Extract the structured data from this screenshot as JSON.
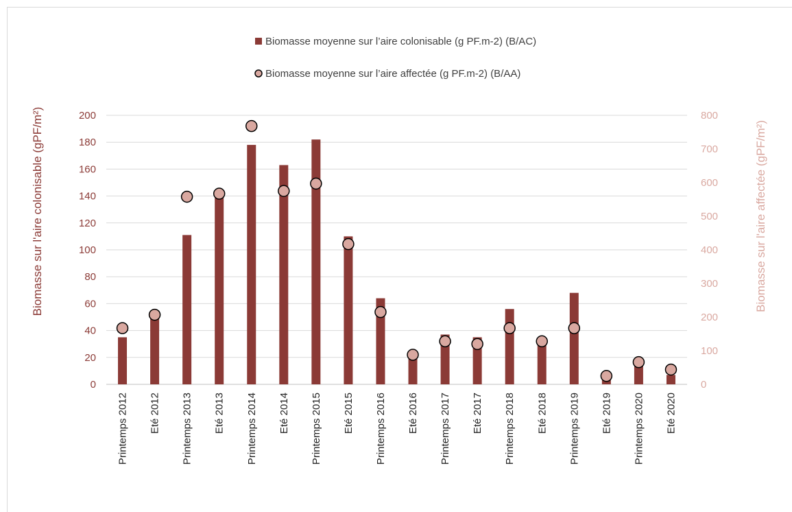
{
  "chart_data": {
    "type": "bar",
    "categories": [
      "Printemps 2012",
      "Eté 2012",
      "Printemps 2013",
      "Eté 2013",
      "Printemps 2014",
      "Eté 2014",
      "Printemps 2015",
      "Eté 2015",
      "Printemps 2016",
      "Eté 2016",
      "Printemps 2017",
      "Eté 2017",
      "Printemps 2018",
      "Eté 2018",
      "Printemps 2019",
      "Eté 2019",
      "Printemps 2020",
      "Eté 2020"
    ],
    "series": [
      {
        "name": "Biomasse moyenne sur l’aire colonisable (g PF.m-2) (B/AC)",
        "type": "bar",
        "axis": "left",
        "color": "#8b3a36",
        "values": [
          35,
          50,
          111,
          142,
          178,
          163,
          182,
          110,
          64,
          21,
          37,
          35,
          56,
          35,
          68,
          5,
          16,
          7
        ]
      },
      {
        "name": "Biomasse moyenne sur l’aire affectée (g PF.m-2) (B/AA)",
        "type": "scatter",
        "axis": "right",
        "color": "#d9a8a0",
        "values": [
          167,
          207,
          558,
          567,
          768,
          575,
          597,
          417,
          215,
          88,
          128,
          120,
          167,
          128,
          167,
          25,
          66,
          44
        ]
      }
    ],
    "ylabel": "Biomasse sur l'aire colonisable (gPF/m²)",
    "y2label": "Biomasse sur l'aire affectée (gPF/m²)",
    "ylim": [
      0,
      200
    ],
    "y2lim": [
      0,
      800
    ],
    "yticks": [
      "0",
      "20",
      "40",
      "60",
      "80",
      "100",
      "120",
      "140",
      "160",
      "180",
      "200"
    ],
    "y2ticks": [
      "0",
      "100",
      "200",
      "300",
      "400",
      "500",
      "600",
      "700",
      "800"
    ],
    "grid": true,
    "legend_position": "top",
    "colors": {
      "bar": "#8b3a36",
      "marker": "#d9a8a0",
      "left_axis_text": "#8b3a36",
      "right_axis_text": "#d9a8a0",
      "grid": "#d9d9d9"
    }
  }
}
